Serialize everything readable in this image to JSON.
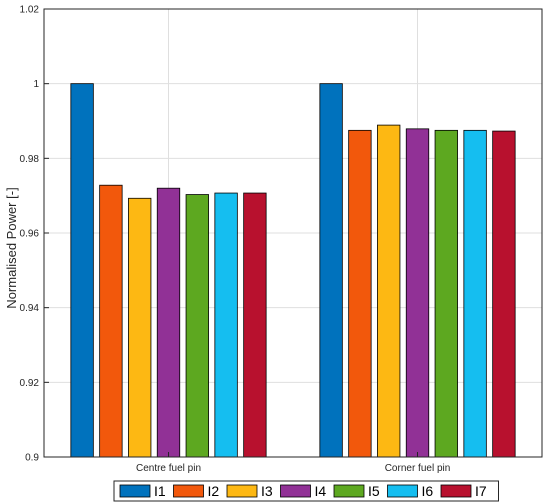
{
  "chart_data": {
    "type": "bar",
    "categories": [
      "Centre fuel pin",
      "Corner fuel pin"
    ],
    "series": [
      {
        "name": "I1",
        "color": "#0072BD",
        "values": [
          1.0,
          1.0
        ]
      },
      {
        "name": "I2",
        "color": "#F2580C",
        "values": [
          0.9728,
          0.9875
        ]
      },
      {
        "name": "I3",
        "color": "#FDB813",
        "values": [
          0.9693,
          0.9889
        ]
      },
      {
        "name": "I4",
        "color": "#913196",
        "values": [
          0.972,
          0.9879
        ]
      },
      {
        "name": "I5",
        "color": "#5DA820",
        "values": [
          0.9703,
          0.9875
        ]
      },
      {
        "name": "I6",
        "color": "#15BEF0",
        "values": [
          0.9707,
          0.9875
        ]
      },
      {
        "name": "I7",
        "color": "#B8112E",
        "values": [
          0.9707,
          0.9873
        ]
      }
    ],
    "title": "",
    "xlabel": "",
    "ylabel": "Normalised Power [-]",
    "ylim": [
      0.9,
      1.02
    ],
    "yticks": [
      "0.9",
      "0.92",
      "0.94",
      "0.96",
      "0.98",
      "1",
      "1.02"
    ],
    "grid": true,
    "legend_position": "bottom"
  }
}
